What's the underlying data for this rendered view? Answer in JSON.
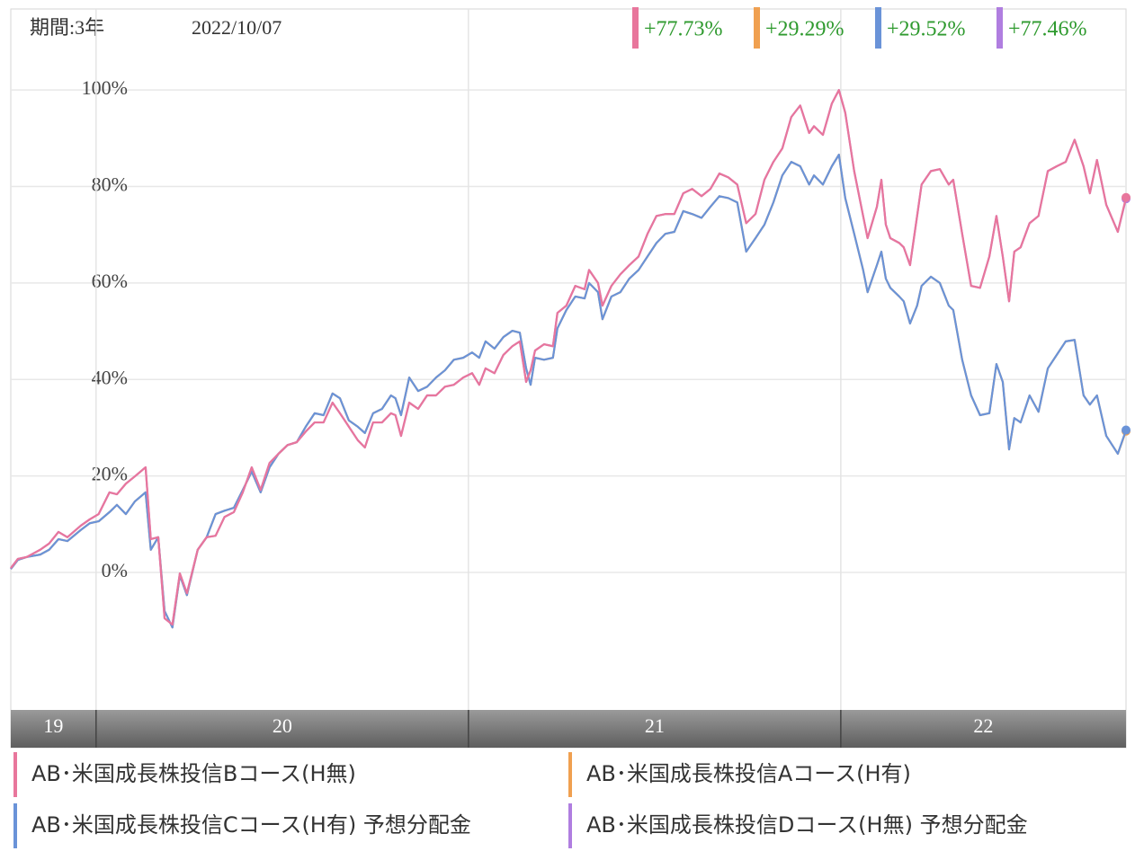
{
  "chart_data": {
    "type": "line",
    "period_label": "期間:3年",
    "date": "2022/10/07",
    "xlim": [
      2019.771,
      2022.766
    ],
    "xticks": [
      {
        "value": 2019,
        "label": "19"
      },
      {
        "value": 2020,
        "label": "20"
      },
      {
        "value": 2021,
        "label": "21"
      },
      {
        "value": 2022,
        "label": "22"
      }
    ],
    "ylim": [
      -28.5,
      116.8
    ],
    "yticks": [
      {
        "value": 0,
        "label": "0%"
      },
      {
        "value": 20,
        "label": "20%"
      },
      {
        "value": 40,
        "label": "40%"
      },
      {
        "value": 60,
        "label": "60%"
      },
      {
        "value": 80,
        "label": "80%"
      },
      {
        "value": 100,
        "label": "100%"
      }
    ],
    "grid": true,
    "x": [
      2019.771,
      2019.79,
      2019.814,
      2019.85,
      2019.874,
      2019.899,
      2019.923,
      2019.959,
      2019.983,
      2020.007,
      2020.036,
      2020.056,
      2020.08,
      2020.104,
      2020.133,
      2020.147,
      2020.167,
      2020.184,
      2020.205,
      2020.225,
      2020.244,
      2020.273,
      2020.297,
      2020.321,
      2020.345,
      2020.37,
      2020.394,
      2020.418,
      2020.442,
      2020.466,
      2020.49,
      2020.514,
      2020.539,
      2020.563,
      2020.587,
      2020.611,
      2020.635,
      2020.655,
      2020.679,
      2020.703,
      2020.722,
      2020.744,
      2020.768,
      2020.792,
      2020.804,
      2020.819,
      2020.841,
      2020.865,
      2020.889,
      2020.913,
      2020.937,
      2020.961,
      2020.986,
      2021.01,
      2021.029,
      2021.046,
      2021.07,
      2021.094,
      2021.118,
      2021.138,
      2021.155,
      2021.167,
      2021.179,
      2021.203,
      2021.227,
      2021.239,
      2021.263,
      2021.287,
      2021.312,
      2021.324,
      2021.348,
      2021.36,
      2021.384,
      2021.408,
      2021.432,
      2021.457,
      2021.481,
      2021.505,
      2021.529,
      2021.553,
      2021.577,
      2021.601,
      2021.626,
      2021.65,
      2021.674,
      2021.698,
      2021.722,
      2021.746,
      2021.771,
      2021.795,
      2021.819,
      2021.843,
      2021.867,
      2021.891,
      2021.915,
      2021.928,
      2021.952,
      2021.976,
      2021.995,
      2022.012,
      2022.036,
      2022.06,
      2022.072,
      2022.097,
      2022.109,
      2022.121,
      2022.133,
      2022.157,
      2022.169,
      2022.186,
      2022.205,
      2022.217,
      2022.242,
      2022.266,
      2022.29,
      2022.302,
      2022.326,
      2022.35,
      2022.374,
      2022.399,
      2022.418,
      2022.435,
      2022.452,
      2022.466,
      2022.483,
      2022.507,
      2022.531,
      2022.556,
      2022.58,
      2022.604,
      2022.628,
      2022.652,
      2022.669,
      2022.688,
      2022.713,
      2022.744,
      2022.766
    ],
    "series": [
      {
        "name": "AB･米国成長株投信Bコース(H無)",
        "color": "#e8769c",
        "end_label": "+77.73%",
        "values": [
          0.9,
          2.8,
          3.2,
          4.7,
          6.0,
          8.4,
          7.3,
          9.7,
          11.0,
          12.1,
          16.6,
          16.2,
          18.4,
          19.9,
          21.8,
          6.9,
          7.3,
          -9.5,
          -10.8,
          -0.2,
          -4.3,
          4.7,
          7.3,
          7.6,
          11.5,
          12.5,
          16.6,
          21.8,
          17.1,
          22.7,
          24.6,
          26.4,
          27.0,
          29.2,
          31.1,
          31.1,
          35.2,
          33.0,
          30.2,
          27.4,
          25.9,
          31.1,
          31.1,
          33.0,
          32.6,
          28.3,
          35.2,
          33.9,
          36.7,
          36.7,
          38.5,
          38.9,
          40.4,
          41.3,
          38.9,
          42.3,
          41.3,
          45.1,
          46.9,
          47.9,
          39.5,
          41.9,
          46.0,
          47.3,
          46.9,
          53.8,
          55.3,
          59.4,
          58.7,
          62.7,
          60.0,
          55.3,
          59.4,
          61.8,
          63.7,
          65.5,
          70.2,
          73.9,
          74.3,
          74.3,
          78.6,
          79.5,
          78.0,
          79.5,
          82.7,
          81.9,
          80.4,
          72.4,
          74.3,
          81.4,
          85.1,
          87.9,
          94.4,
          96.8,
          91.1,
          92.5,
          90.7,
          97.2,
          100.0,
          95.3,
          83.2,
          73.9,
          69.3,
          75.8,
          81.4,
          72.1,
          69.3,
          68.3,
          67.4,
          63.7,
          73.9,
          80.4,
          83.2,
          83.6,
          80.4,
          81.4,
          70.2,
          59.4,
          59.0,
          65.5,
          73.9,
          65.5,
          56.2,
          66.5,
          67.4,
          72.4,
          73.9,
          83.2,
          84.2,
          85.1,
          89.7,
          84.2,
          78.6,
          85.5,
          76.2,
          70.6,
          77.73
        ]
      },
      {
        "name": "AB･米国成長株投信Aコース(H有)",
        "color": "#f0a050",
        "end_label": "+29.29%",
        "values": [
          0.7,
          2.6,
          3.2,
          3.7,
          4.7,
          6.9,
          6.5,
          8.8,
          10.2,
          10.6,
          12.5,
          14.0,
          12.1,
          14.7,
          16.6,
          4.7,
          7.3,
          -8.0,
          -11.4,
          -0.6,
          -4.7,
          4.7,
          7.3,
          12.1,
          12.8,
          13.4,
          17.1,
          20.9,
          16.6,
          21.8,
          24.6,
          26.4,
          27.0,
          30.2,
          33.0,
          32.6,
          37.1,
          36.1,
          31.5,
          30.2,
          28.9,
          33.0,
          33.9,
          36.7,
          36.1,
          32.6,
          40.4,
          37.6,
          38.5,
          40.4,
          41.9,
          44.1,
          44.5,
          45.6,
          44.5,
          47.9,
          46.4,
          48.8,
          50.1,
          49.7,
          42.3,
          38.9,
          44.5,
          44.1,
          44.5,
          50.6,
          54.4,
          57.2,
          56.8,
          60.0,
          58.1,
          52.5,
          57.2,
          58.1,
          60.9,
          62.7,
          65.5,
          68.3,
          70.2,
          70.6,
          74.9,
          74.3,
          73.5,
          75.8,
          78.0,
          77.6,
          76.7,
          66.5,
          69.3,
          72.1,
          76.7,
          82.3,
          85.1,
          84.2,
          80.4,
          82.3,
          80.4,
          84.2,
          86.6,
          77.6,
          70.2,
          62.7,
          58.1,
          63.7,
          66.5,
          60.9,
          59.0,
          57.2,
          56.2,
          51.6,
          55.3,
          59.4,
          61.3,
          60.0,
          55.3,
          54.4,
          44.1,
          36.7,
          32.6,
          33.0,
          43.2,
          39.5,
          25.5,
          32.0,
          31.1,
          36.7,
          33.3,
          42.3,
          45.1,
          47.9,
          48.2,
          36.7,
          34.8,
          36.7,
          28.3,
          24.6,
          29.29
        ]
      },
      {
        "name": "AB･米国成長株投信Cコース(H有) 予想分配金",
        "color": "#6a93d8",
        "end_label": "+29.52%",
        "values": [
          0.7,
          2.6,
          3.2,
          3.7,
          4.7,
          6.9,
          6.5,
          8.8,
          10.2,
          10.6,
          12.5,
          14.0,
          12.1,
          14.7,
          16.6,
          4.7,
          7.3,
          -8.0,
          -11.4,
          -0.6,
          -4.7,
          4.7,
          7.3,
          12.1,
          12.8,
          13.4,
          17.1,
          20.9,
          16.6,
          21.8,
          24.6,
          26.4,
          27.0,
          30.2,
          33.0,
          32.6,
          37.1,
          36.1,
          31.5,
          30.2,
          28.9,
          33.0,
          33.9,
          36.7,
          36.1,
          32.6,
          40.4,
          37.6,
          38.5,
          40.4,
          41.9,
          44.1,
          44.5,
          45.6,
          44.5,
          47.9,
          46.4,
          48.8,
          50.1,
          49.7,
          42.3,
          38.9,
          44.5,
          44.1,
          44.5,
          50.6,
          54.4,
          57.2,
          56.8,
          60.0,
          58.1,
          52.5,
          57.2,
          58.1,
          60.9,
          62.7,
          65.5,
          68.3,
          70.2,
          70.6,
          74.9,
          74.3,
          73.5,
          75.8,
          78.0,
          77.6,
          76.7,
          66.5,
          69.3,
          72.1,
          76.7,
          82.3,
          85.1,
          84.2,
          80.4,
          82.3,
          80.4,
          84.2,
          86.6,
          77.6,
          70.2,
          62.7,
          58.1,
          63.7,
          66.5,
          60.9,
          59.0,
          57.2,
          56.2,
          51.6,
          55.3,
          59.4,
          61.3,
          60.0,
          55.3,
          54.4,
          44.1,
          36.7,
          32.6,
          33.0,
          43.2,
          39.5,
          25.5,
          32.0,
          31.1,
          36.7,
          33.3,
          42.3,
          45.1,
          47.9,
          48.2,
          36.7,
          34.8,
          36.7,
          28.3,
          24.6,
          29.52
        ]
      },
      {
        "name": "AB･米国成長株投信Dコース(H無) 予想分配金",
        "color": "#b07ee0",
        "end_label": "+77.46%",
        "values": [
          0.9,
          2.8,
          3.2,
          4.7,
          6.0,
          8.4,
          7.3,
          9.7,
          11.0,
          12.1,
          16.6,
          16.2,
          18.4,
          19.9,
          21.8,
          6.9,
          7.3,
          -9.5,
          -10.8,
          -0.2,
          -4.3,
          4.7,
          7.3,
          7.6,
          11.5,
          12.5,
          16.6,
          21.8,
          17.1,
          22.7,
          24.6,
          26.4,
          27.0,
          29.2,
          31.1,
          31.1,
          35.2,
          33.0,
          30.2,
          27.4,
          25.9,
          31.1,
          31.1,
          33.0,
          32.6,
          28.3,
          35.2,
          33.9,
          36.7,
          36.7,
          38.5,
          38.9,
          40.4,
          41.3,
          38.9,
          42.3,
          41.3,
          45.1,
          46.9,
          47.9,
          39.5,
          41.9,
          46.0,
          47.3,
          46.9,
          53.8,
          55.3,
          59.4,
          58.7,
          62.7,
          60.0,
          55.3,
          59.4,
          61.8,
          63.7,
          65.5,
          70.2,
          73.9,
          74.3,
          74.3,
          78.6,
          79.5,
          78.0,
          79.5,
          82.7,
          81.9,
          80.4,
          72.4,
          74.3,
          81.4,
          85.1,
          87.9,
          94.4,
          96.8,
          91.1,
          92.5,
          90.7,
          97.2,
          100.0,
          95.3,
          83.2,
          73.9,
          69.3,
          75.8,
          81.4,
          72.1,
          69.3,
          68.3,
          67.4,
          63.7,
          73.9,
          80.4,
          83.2,
          83.6,
          80.4,
          81.4,
          70.2,
          59.4,
          59.0,
          65.5,
          73.9,
          65.5,
          56.2,
          66.5,
          67.4,
          72.4,
          73.9,
          83.2,
          84.2,
          85.1,
          89.7,
          84.2,
          78.6,
          85.5,
          76.2,
          70.6,
          77.46
        ]
      }
    ]
  }
}
